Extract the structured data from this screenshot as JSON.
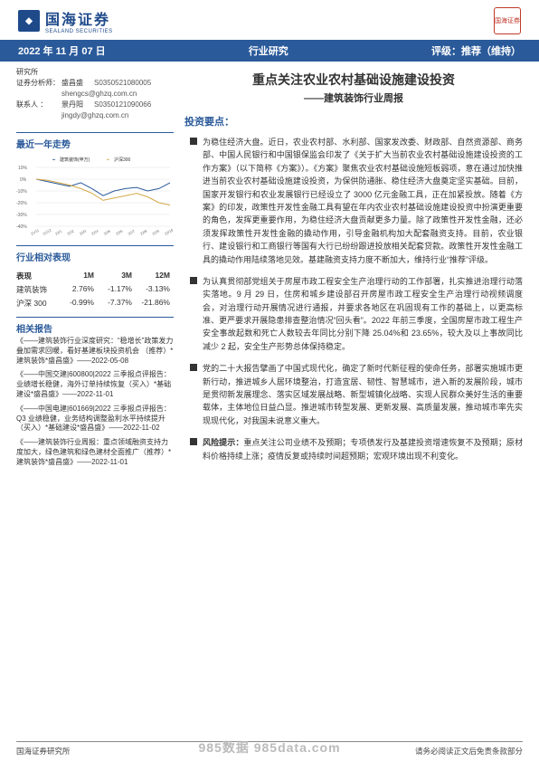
{
  "header": {
    "company_cn": "国海证券",
    "company_en": "SEALAND SECURITIES",
    "seal_text": "国海证券"
  },
  "blue_bar": {
    "date": "2022 年 11 月 07 日",
    "center": "行业研究",
    "right": "评级：推荐（维持）"
  },
  "analysts": {
    "dept": "研究所",
    "label_analyst": "证券分析师：",
    "label_contact": "联系人        ：",
    "rows": [
      {
        "name": "盛昌盛",
        "code": "S0350521080005",
        "email": "shengcs@ghzq.com.cn"
      },
      {
        "name": "景丹阳",
        "code": "S0350121090066",
        "email": "jingdy@ghzq.com.cn"
      }
    ]
  },
  "trend": {
    "title": "最近一年走势",
    "legend": [
      "建筑装饰(申万)",
      "沪深300"
    ],
    "line_colors": [
      "#2a5a9a",
      "#d4a847"
    ],
    "background": "#ffffff",
    "grid_color": "#e0e0e0",
    "ylim": [
      -40,
      10
    ],
    "ytick_step": 10,
    "xlabels": [
      "21/11",
      "21/12",
      "22/1",
      "22/2",
      "22/3",
      "22/4",
      "22/5",
      "22/6",
      "22/7",
      "22/8",
      "22/9",
      "22/10"
    ],
    "series_main": [
      0,
      -2,
      -4,
      -6,
      -3,
      -8,
      -14,
      -10,
      -8,
      -7,
      -10,
      -8,
      -3
    ],
    "series_bench": [
      0,
      -1,
      -3,
      -5,
      -8,
      -12,
      -18,
      -16,
      -14,
      -12,
      -15,
      -20,
      -22
    ]
  },
  "performance": {
    "title": "行业相对表现",
    "header": [
      "表现",
      "1M",
      "3M",
      "12M"
    ],
    "rows": [
      [
        "建筑装饰",
        "2.76%",
        "-1.17%",
        "-3.13%"
      ],
      [
        "沪深 300",
        "-0.99%",
        "-7.37%",
        "-21.86%"
      ]
    ]
  },
  "related": {
    "title": "相关报告",
    "items": [
      "《——建筑装饰行业深度研究：“稳增长”政策发力叠加需求回暖，看好基建板块投资机会  （推荐）*建筑装饰*盛昌盛》——2022-05-08",
      "《——中国交建|600800|2022 三季报点评报告：业绩增长稳健，海外订单持续恢复（买入）*基础建设*盛昌盛》——2022-11-01",
      "《——中国电建|601669|2022 三季报点评报告：Q3 业绩稳健，业务结构调整盈利水平持续提升（买入）*基础建设*盛昌盛》——2022-11-02",
      "《——建筑装饰行业周报：重点领域融资支持力度加大，绿色建筑和绿色建材全面推广（推荐）*建筑装饰*盛昌盛》——2022-11-01"
    ]
  },
  "main": {
    "title": "重点关注农业农村基础设施建设投资",
    "subtitle": "——建筑装饰行业周报",
    "section_title": "投资要点：",
    "bullets": [
      "为稳住经济大盘。近日，农业农村部、水利部、国家发改委、财政部、自然资源部、商务部、中国人民银行和中国银保监会印发了《关于扩大当前农业农村基础设施建设投资的工作方案》（以下简称《方案》）。《方案》聚焦农业农村基础设施短板弱项，意在通过加快推进当前农业农村基础设施建设投资，为保供防通胀、稳住经济大盘奠定坚实基础。目前，国家开发银行和农业发展银行已经设立了 3000 亿元金融工具，正在加紧投放。随着《方案》的印发，政策性开发性金融工具有望在年内农业农村基础设施建设投资中扮演更重要的角色，发挥更重要作用，为稳住经济大盘贡献更多力量。除了政策性开发性金融，还必须发挥政策性开发性金融的撬动作用，引导金融机构加大配套融资支持。目前，农业银行、建设银行和工商银行等国有大行已纷纷跟进投放相关配套贷款。政策性开发性金融工具的撬动作用陆续落地见效。基建融资支持力度不断加大，维持行业“推荐”评级。",
      "为认真贯彻部党组关于房屋市政工程安全生产治理行动的工作部署，扎实推进治理行动落实落地。9 月 29 日，住房和城乡建设部召开房屋市政工程安全生产治理行动视频调度会，对治理行动开展情况进行通报，并要求各地区在巩固现有工作的基础上，以更高标准、更严要求开展隐患排查整治情况“回头看”。2022 年前三季度，全国房屋市政工程生产安全事故起数和死亡人数较去年同比分别下降 25.04%和 23.65%，较大及以上事故同比减少 2 起，安全生产形势总体保持稳定。",
      "党的二十大报告擘画了中国式现代化，确定了新时代新征程的使命任务，部署实施城市更新行动，推进城乡人居环境整治，打造宜居、韧性、智慧城市，进入新的发展阶段，城市是贯彻新发展理念、落实区域发展战略、新型城镇化战略、实现人民群众美好生活的重要载体，主体地位日益凸显。推进城市转型发展、更新发展、高质量发展，推动城市率先实现现代化，对我国未说意义重大。"
    ],
    "risk_label": "风险提示：",
    "risk_text": "重点关注公司业绩不及预期；专项债发行及基建投资增速恢复不及预期；原材料价格持续上涨；疫情反复或持续时间超预期；宏观环境出现不利变化。"
  },
  "footer": {
    "left": "国海证券研究所",
    "right": "请务必阅读正文后免责条款部分",
    "watermark": "985数据 985data.com"
  }
}
